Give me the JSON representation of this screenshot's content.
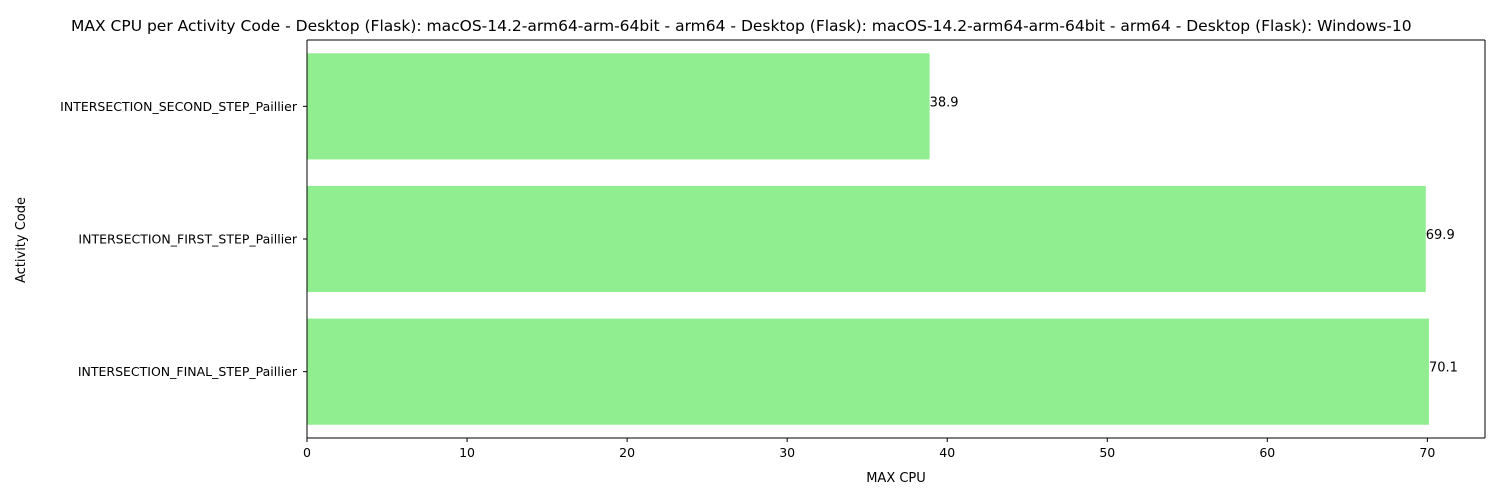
{
  "chart_data": {
    "type": "bar",
    "orientation": "horizontal",
    "title": "MAX CPU per Activity Code - Desktop (Flask): macOS-14.2-arm64-arm-64bit - arm64 - Desktop (Flask): macOS-14.2-arm64-arm-64bit - arm64 - Desktop (Flask): Windows-10",
    "xlabel": "MAX CPU",
    "ylabel": "Activity Code",
    "categories": [
      "INTERSECTION_SECOND_STEP_Paillier",
      "INTERSECTION_FIRST_STEP_Paillier",
      "INTERSECTION_FINAL_STEP_Paillier"
    ],
    "values": [
      38.9,
      69.9,
      70.1
    ],
    "value_labels": [
      "38.9",
      "69.9",
      "70.1"
    ],
    "xlim": [
      0,
      73.6
    ],
    "xticks": [
      0,
      10,
      20,
      30,
      40,
      50,
      60,
      70
    ],
    "xtick_labels": [
      "0",
      "10",
      "20",
      "30",
      "40",
      "50",
      "60",
      "70"
    ],
    "bar_color": "#90ee90",
    "grid": false,
    "legend": "none"
  }
}
